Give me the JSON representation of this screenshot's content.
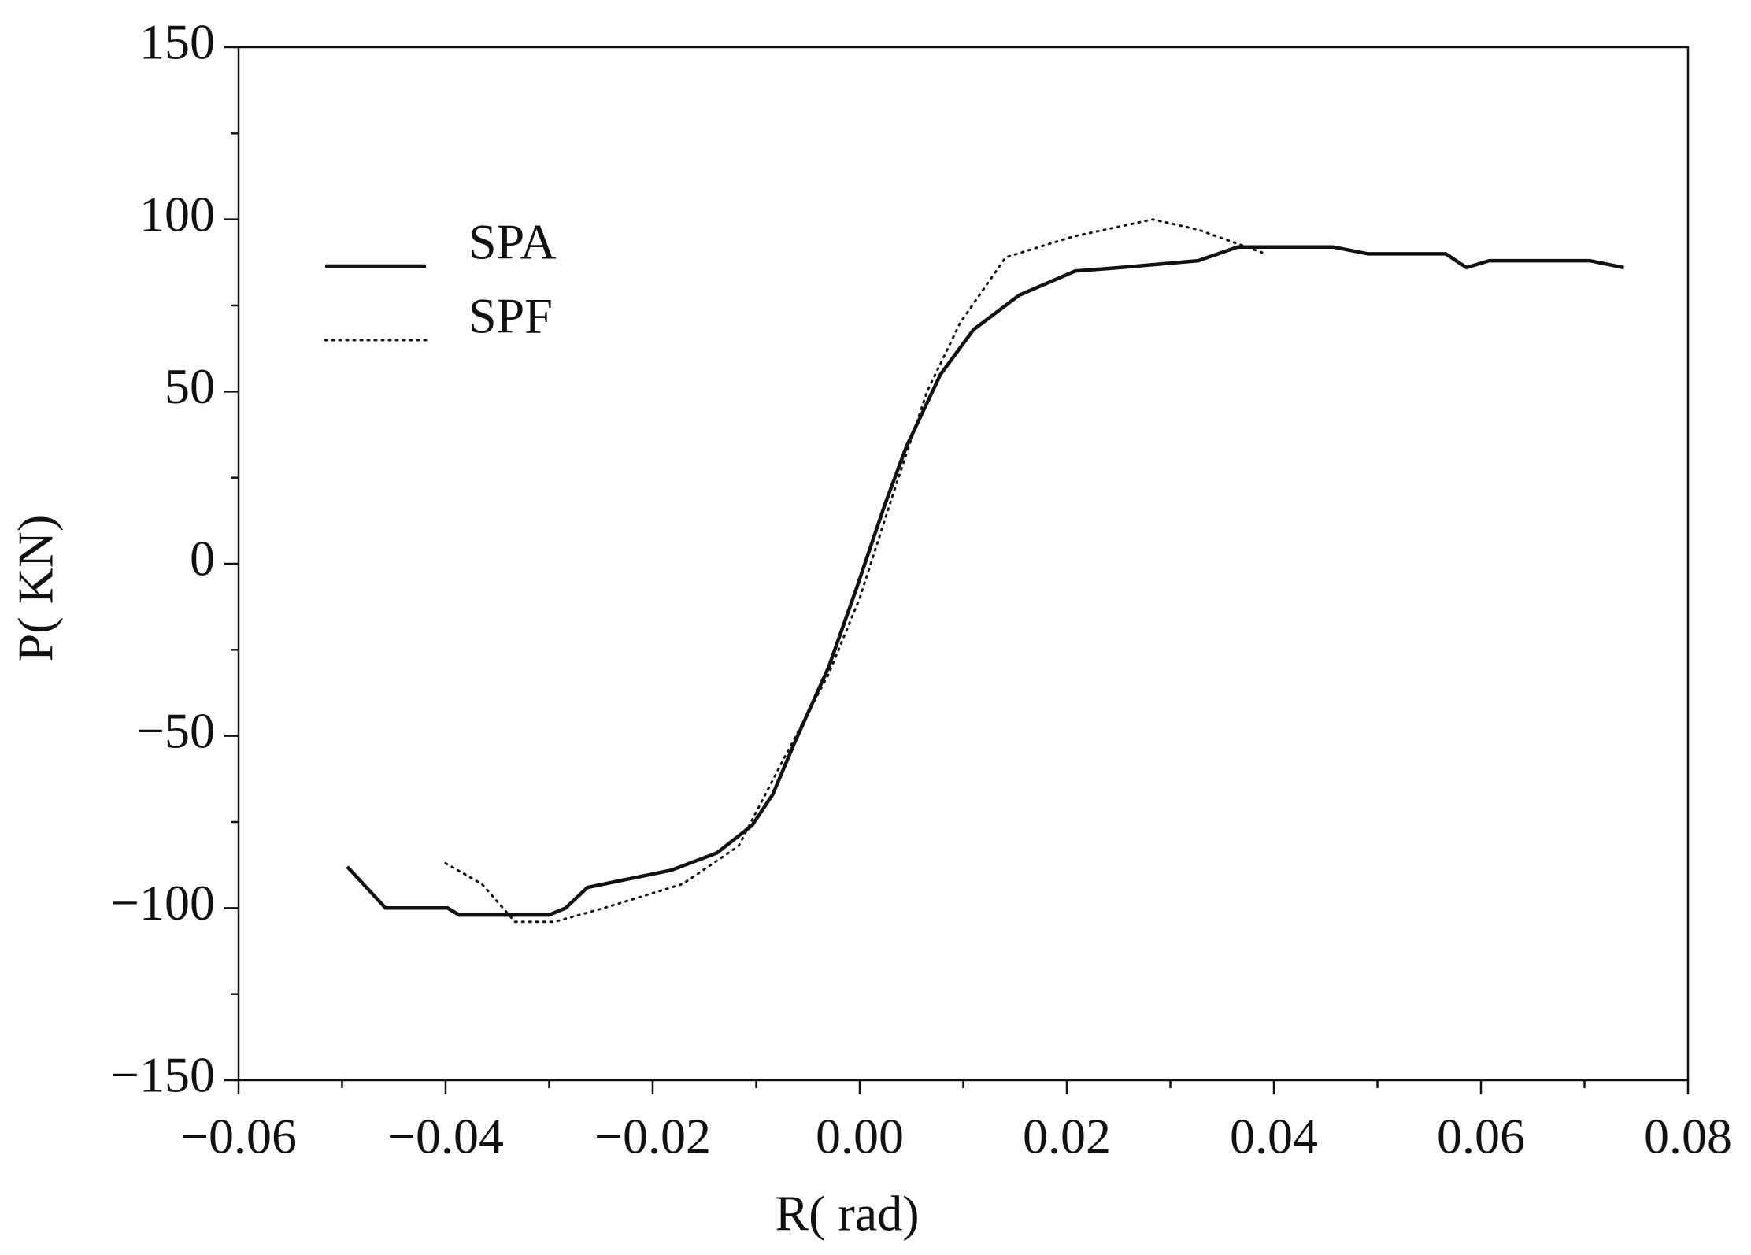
{
  "chart_data": {
    "type": "line",
    "x_label": "R(  rad)",
    "y_label": "P( KN)",
    "xlim": [
      -0.06,
      0.08
    ],
    "ylim": [
      -150,
      150
    ],
    "xticks": [
      {
        "value": -0.06,
        "label": "−0.06"
      },
      {
        "value": -0.04,
        "label": "−0.04"
      },
      {
        "value": -0.02,
        "label": "−0.02"
      },
      {
        "value": 0,
        "label": "0.00"
      },
      {
        "value": 0.02,
        "label": "0.02"
      },
      {
        "value": 0.04,
        "label": "0.04"
      },
      {
        "value": 0.06,
        "label": "0.06"
      },
      {
        "value": 0.08,
        "label": "0.08"
      }
    ],
    "yticks": [
      {
        "value": -150,
        "label": "−150"
      },
      {
        "value": -100,
        "label": "−100"
      },
      {
        "value": -50,
        "label": "−50"
      },
      0,
      50,
      100,
      150
    ],
    "legend": "upper left",
    "grid": false,
    "series": [
      {
        "name": "SPA",
        "color": "#111111",
        "style": "solid",
        "x": [
          -0.0495,
          -0.0458,
          -0.0398,
          -0.0387,
          -0.03,
          -0.0284,
          -0.0263,
          -0.0182,
          -0.0138,
          -0.0104,
          -0.0084,
          -0.0063,
          -0.003,
          -0.0003,
          0.0024,
          0.0045,
          0.0078,
          0.011,
          0.0154,
          0.0208,
          0.0251,
          0.0327,
          0.0365,
          0.0457,
          0.0491,
          0.0522,
          0.0566,
          0.0586,
          0.0608,
          0.0683,
          0.0705,
          0.0738
        ],
        "values": [
          -88,
          -100,
          -100,
          -102,
          -102,
          -100,
          -94,
          -89,
          -84,
          -76,
          -67,
          -52,
          -30,
          -7,
          17,
          34,
          55,
          68,
          78,
          85,
          86,
          88,
          92,
          92,
          90,
          90,
          90,
          86,
          88,
          88,
          88,
          86
        ]
      },
      {
        "name": "SPF",
        "color": "#111111",
        "style": "dotted",
        "x": [
          -0.04,
          -0.0365,
          -0.0333,
          -0.0295,
          -0.0247,
          -0.0171,
          -0.0117,
          -0.0074,
          -0.003,
          0.0,
          0.0033,
          0.0065,
          0.0097,
          0.0141,
          0.0206,
          0.0283,
          0.0327,
          0.0392
        ],
        "values": [
          -87,
          -93,
          -104,
          -104,
          -100,
          -93,
          -82,
          -57,
          -32,
          -10,
          21,
          50,
          70,
          89,
          95,
          100,
          97,
          90
        ]
      }
    ]
  }
}
